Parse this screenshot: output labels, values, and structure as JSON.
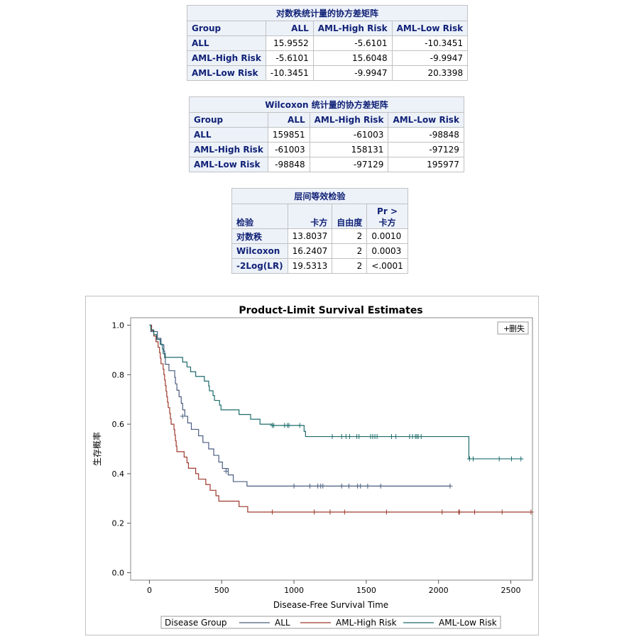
{
  "logrank_cov": {
    "title": "对数秩统计量的协方差矩阵",
    "headers": [
      "Group",
      "ALL",
      "AML-High Risk",
      "AML-Low Risk"
    ],
    "rows": [
      {
        "label": "ALL",
        "values": [
          "15.9552",
          "-5.6101",
          "-10.3451"
        ]
      },
      {
        "label": "AML-High Risk",
        "values": [
          "-5.6101",
          "15.6048",
          "-9.9947"
        ]
      },
      {
        "label": "AML-Low Risk",
        "values": [
          "-10.3451",
          "-9.9947",
          "20.3398"
        ]
      }
    ]
  },
  "wilcoxon_cov": {
    "title": "Wilcoxon 统计量的协方差矩阵",
    "headers": [
      "Group",
      "ALL",
      "AML-High Risk",
      "AML-Low Risk"
    ],
    "rows": [
      {
        "label": "ALL",
        "values": [
          "159851",
          "-61003",
          "-98848"
        ]
      },
      {
        "label": "AML-High Risk",
        "values": [
          "-61003",
          "158131",
          "-97129"
        ]
      },
      {
        "label": "AML-Low Risk",
        "values": [
          "-98848",
          "-97129",
          "195977"
        ]
      }
    ]
  },
  "strata_test": {
    "title": "层间等效检验",
    "headers": [
      "检验",
      "卡方",
      "自由度",
      "Pr >",
      "卡方"
    ],
    "rows": [
      {
        "label": "对数秩",
        "chisq": "13.8037",
        "df": "2",
        "p": "0.0010"
      },
      {
        "label": "Wilcoxon",
        "chisq": "16.2407",
        "df": "2",
        "p": "0.0003"
      },
      {
        "label": "-2Log(LR)",
        "chisq": "19.5313",
        "df": "2",
        "p": "<.0001"
      }
    ]
  },
  "legend": {
    "title": "Disease Group",
    "censor_label": "删失",
    "censor_symbol": "+"
  },
  "chart_data": {
    "type": "line",
    "title": "Product-Limit Survival Estimates",
    "xlabel": "Disease-Free Survival Time",
    "ylabel": "生存概率",
    "xlim": [
      -130,
      2650
    ],
    "ylim": [
      -0.03,
      1.03
    ],
    "xticks": [
      0,
      500,
      1000,
      1500,
      2000,
      2500
    ],
    "yticks": [
      0.0,
      0.2,
      0.4,
      0.6,
      0.8,
      1.0
    ],
    "ytick_labels": [
      "0.0",
      "0.2",
      "0.4",
      "0.6",
      "0.8",
      "1.0"
    ],
    "grid": false,
    "legend_position": "bottom",
    "series": [
      {
        "name": "ALL",
        "color": "#4a5d80",
        "steps": [
          [
            0,
            1.0
          ],
          [
            10,
            0.974
          ],
          [
            55,
            0.947
          ],
          [
            80,
            0.921
          ],
          [
            100,
            0.895
          ],
          [
            105,
            0.868
          ],
          [
            110,
            0.842
          ],
          [
            135,
            0.816
          ],
          [
            175,
            0.789
          ],
          [
            180,
            0.763
          ],
          [
            190,
            0.737
          ],
          [
            205,
            0.711
          ],
          [
            220,
            0.684
          ],
          [
            230,
            0.658
          ],
          [
            245,
            0.632
          ],
          [
            265,
            0.605
          ],
          [
            290,
            0.579
          ],
          [
            340,
            0.553
          ],
          [
            370,
            0.526
          ],
          [
            410,
            0.5
          ],
          [
            445,
            0.474
          ],
          [
            480,
            0.447
          ],
          [
            505,
            0.421
          ],
          [
            545,
            0.395
          ],
          [
            580,
            0.368
          ],
          [
            675,
            0.35
          ],
          [
            2081,
            0.35
          ]
        ],
        "censored": [
          [
            230,
            0.632
          ],
          [
            530,
            0.41
          ],
          [
            1000,
            0.35
          ],
          [
            1110,
            0.35
          ],
          [
            1165,
            0.35
          ],
          [
            1185,
            0.35
          ],
          [
            1200,
            0.35
          ],
          [
            1330,
            0.35
          ],
          [
            1380,
            0.35
          ],
          [
            1440,
            0.35
          ],
          [
            1460,
            0.35
          ],
          [
            1510,
            0.35
          ],
          [
            1600,
            0.35
          ],
          [
            2080,
            0.35
          ]
        ]
      },
      {
        "name": "AML-High Risk",
        "color": "#9e3a2e",
        "steps": [
          [
            0,
            1.0
          ],
          [
            15,
            0.978
          ],
          [
            30,
            0.956
          ],
          [
            45,
            0.933
          ],
          [
            60,
            0.911
          ],
          [
            70,
            0.889
          ],
          [
            75,
            0.867
          ],
          [
            80,
            0.844
          ],
          [
            95,
            0.822
          ],
          [
            100,
            0.8
          ],
          [
            105,
            0.778
          ],
          [
            110,
            0.756
          ],
          [
            115,
            0.733
          ],
          [
            120,
            0.711
          ],
          [
            125,
            0.689
          ],
          [
            130,
            0.667
          ],
          [
            140,
            0.644
          ],
          [
            145,
            0.622
          ],
          [
            150,
            0.6
          ],
          [
            170,
            0.578
          ],
          [
            175,
            0.556
          ],
          [
            180,
            0.533
          ],
          [
            185,
            0.511
          ],
          [
            190,
            0.489
          ],
          [
            240,
            0.467
          ],
          [
            260,
            0.444
          ],
          [
            270,
            0.422
          ],
          [
            320,
            0.4
          ],
          [
            340,
            0.378
          ],
          [
            390,
            0.356
          ],
          [
            420,
            0.333
          ],
          [
            460,
            0.311
          ],
          [
            480,
            0.289
          ],
          [
            620,
            0.267
          ],
          [
            680,
            0.245
          ],
          [
            2640,
            0.245
          ]
        ],
        "censored": [
          [
            850,
            0.245
          ],
          [
            1140,
            0.245
          ],
          [
            1250,
            0.245
          ],
          [
            1350,
            0.245
          ],
          [
            1640,
            0.245
          ],
          [
            2025,
            0.245
          ],
          [
            2140,
            0.245
          ],
          [
            2145,
            0.245
          ],
          [
            2250,
            0.245
          ],
          [
            2440,
            0.245
          ],
          [
            2640,
            0.245
          ]
        ]
      },
      {
        "name": "AML-Low Risk",
        "color": "#1e6b6b",
        "steps": [
          [
            0,
            1.0
          ],
          [
            10,
            0.981
          ],
          [
            30,
            0.962
          ],
          [
            50,
            0.942
          ],
          [
            75,
            0.923
          ],
          [
            90,
            0.904
          ],
          [
            95,
            0.885
          ],
          [
            110,
            0.87
          ],
          [
            230,
            0.851
          ],
          [
            260,
            0.831
          ],
          [
            285,
            0.812
          ],
          [
            320,
            0.793
          ],
          [
            380,
            0.774
          ],
          [
            410,
            0.754
          ],
          [
            415,
            0.735
          ],
          [
            440,
            0.716
          ],
          [
            450,
            0.696
          ],
          [
            485,
            0.677
          ],
          [
            495,
            0.658
          ],
          [
            620,
            0.639
          ],
          [
            700,
            0.62
          ],
          [
            765,
            0.6
          ],
          [
            850,
            0.595
          ],
          [
            1070,
            0.571
          ],
          [
            1080,
            0.55
          ],
          [
            2205,
            0.55
          ],
          [
            2210,
            0.46
          ],
          [
            2575,
            0.46
          ]
        ],
        "censored": [
          [
            850,
            0.595
          ],
          [
            860,
            0.595
          ],
          [
            935,
            0.595
          ],
          [
            955,
            0.595
          ],
          [
            965,
            0.595
          ],
          [
            1040,
            0.595
          ],
          [
            1265,
            0.55
          ],
          [
            1330,
            0.55
          ],
          [
            1360,
            0.55
          ],
          [
            1385,
            0.55
          ],
          [
            1435,
            0.55
          ],
          [
            1450,
            0.55
          ],
          [
            1530,
            0.55
          ],
          [
            1545,
            0.55
          ],
          [
            1560,
            0.55
          ],
          [
            1575,
            0.55
          ],
          [
            1675,
            0.55
          ],
          [
            1705,
            0.55
          ],
          [
            1800,
            0.55
          ],
          [
            1820,
            0.55
          ],
          [
            1840,
            0.55
          ],
          [
            1850,
            0.55
          ],
          [
            1860,
            0.55
          ],
          [
            1880,
            0.55
          ],
          [
            2215,
            0.46
          ],
          [
            2240,
            0.46
          ],
          [
            2420,
            0.46
          ],
          [
            2505,
            0.46
          ],
          [
            2570,
            0.46
          ]
        ]
      }
    ]
  }
}
